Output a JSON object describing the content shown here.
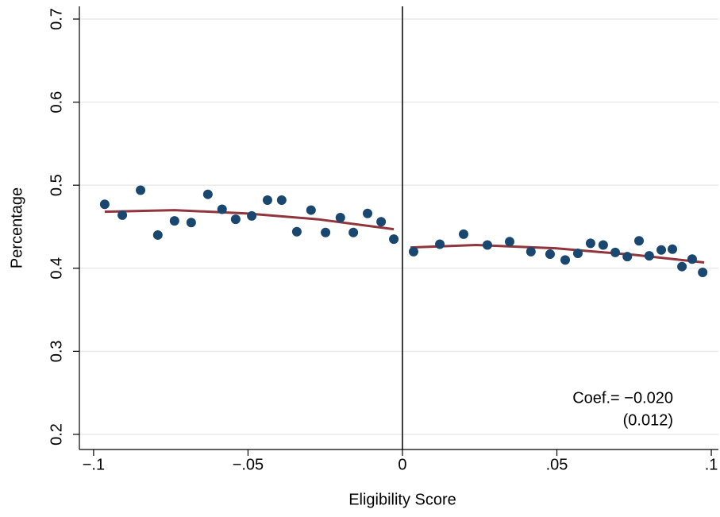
{
  "chart_data": {
    "type": "scatter",
    "x_label": "Eligibility Score",
    "y_label": "Percentage",
    "xlim": [
      -0.1046,
      0.1023
    ],
    "ylim": [
      0.1818,
      0.7153
    ],
    "xticks": [
      {
        "value": -0.1,
        "label": "−.1"
      },
      {
        "value": -0.05,
        "label": "−.05"
      },
      0,
      {
        "value": 0.05,
        "label": ".05"
      },
      {
        "value": 0.1,
        "label": ".1"
      }
    ],
    "yticks": [
      0.2,
      0.3,
      0.4,
      0.5,
      0.6,
      0.7
    ],
    "grid": true,
    "cutoff": 0,
    "annotations": [
      "Coef.= −0.020",
      "(0.012)"
    ],
    "series": [
      {
        "type": "scatter",
        "color": "#1a476f",
        "x": [
          -0.0964,
          -0.0907,
          -0.0848,
          -0.0792,
          -0.0738,
          -0.0684,
          -0.063,
          -0.0584,
          -0.054,
          -0.0488,
          -0.0437,
          -0.0391,
          -0.0342,
          -0.0296,
          -0.0249,
          -0.0201,
          -0.0159,
          -0.0113,
          -0.0069,
          -0.0028
        ],
        "values": [
          0.477,
          0.464,
          0.494,
          0.44,
          0.457,
          0.455,
          0.489,
          0.471,
          0.459,
          0.463,
          0.482,
          0.482,
          0.444,
          0.47,
          0.443,
          0.461,
          0.443,
          0.466,
          0.456,
          0.435
        ]
      },
      {
        "type": "scatter",
        "color": "#1a476f",
        "x": [
          0.0036,
          0.0121,
          0.0198,
          0.0275,
          0.0347,
          0.0416,
          0.0478,
          0.0527,
          0.0568,
          0.0609,
          0.065,
          0.0689,
          0.0728,
          0.0766,
          0.0799,
          0.0838,
          0.0874,
          0.0905,
          0.0938,
          0.0972
        ],
        "values": [
          0.42,
          0.429,
          0.441,
          0.428,
          0.432,
          0.42,
          0.417,
          0.41,
          0.418,
          0.43,
          0.428,
          0.419,
          0.414,
          0.433,
          0.415,
          0.422,
          0.423,
          0.402,
          0.411,
          0.395
        ]
      },
      {
        "type": "line",
        "color": "#90353b",
        "x": [
          -0.0964,
          -0.0738,
          -0.0506,
          -0.0275,
          -0.0028
        ],
        "values": [
          0.468,
          0.47,
          0.466,
          0.459,
          0.447
        ]
      },
      {
        "type": "line",
        "color": "#90353b",
        "x": [
          0.0026,
          0.0239,
          0.0496,
          0.0753,
          0.0977
        ],
        "values": [
          0.425,
          0.428,
          0.424,
          0.416,
          0.407
        ]
      }
    ]
  }
}
